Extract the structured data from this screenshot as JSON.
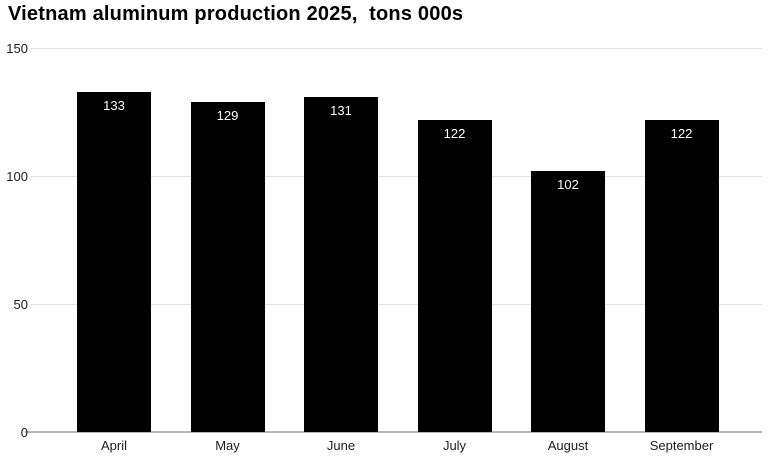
{
  "title": "Vietnam aluminum production 2025,  tons 000s",
  "chart_data": {
    "type": "bar",
    "title": "Vietnam aluminum production 2025,  tons 000s",
    "categories": [
      "April",
      "May",
      "June",
      "July",
      "August",
      "September"
    ],
    "values": [
      133,
      129,
      131,
      122,
      102,
      122
    ],
    "value_labels": [
      "133",
      "129",
      "131",
      "122",
      "102",
      "122"
    ],
    "xlabel": "",
    "ylabel": "",
    "ylim": [
      0,
      150
    ],
    "yticks": [
      "0",
      "50",
      "100",
      "150"
    ],
    "ytick_values": [
      0,
      50,
      100,
      150
    ],
    "grid": true,
    "legend_position": "none",
    "bar_color": "#000000",
    "value_label_color": "#ffffff",
    "gridline_color": "#e2e2e2",
    "baseline_color": "#b7b7b7",
    "axis_text_color": "#1d1d1d"
  }
}
